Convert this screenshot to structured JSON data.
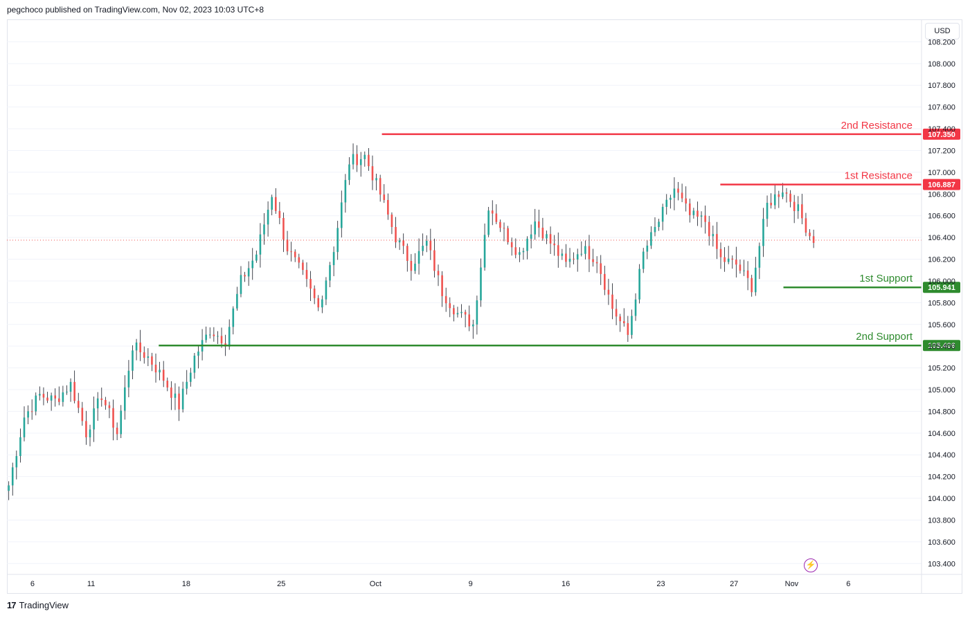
{
  "header": {
    "text": "pegchoco published on TradingView.com, Nov 02, 2023 10:03 UTC+8"
  },
  "currency": "USD",
  "footer": {
    "brand": "TradingView",
    "logo": "17"
  },
  "lightning_icon": "lightning-icon",
  "colors": {
    "up": "#26a69a",
    "down": "#ef5350",
    "resistance": "#f23645",
    "support": "#2e8b2e",
    "current_line": "#ef5350",
    "grid": "#f0f3fa",
    "axis_text": "#131722"
  },
  "chart_data": {
    "type": "candlestick",
    "title": "",
    "ylim": [
      103.3,
      108.4
    ],
    "y_ticks": [
      "103.400",
      "103.600",
      "103.800",
      "104.000",
      "104.200",
      "104.400",
      "104.600",
      "104.800",
      "105.000",
      "105.200",
      "105.400",
      "105.600",
      "105.800",
      "106.000",
      "106.200",
      "106.400",
      "106.600",
      "106.800",
      "107.000",
      "107.200",
      "107.400",
      "107.600",
      "107.800",
      "108.000",
      "108.200"
    ],
    "x_ticks": [
      "6",
      "11",
      "18",
      "25",
      "Oct",
      "9",
      "16",
      "23",
      "27",
      "Nov",
      "6"
    ],
    "current_price": 106.375,
    "levels": [
      {
        "name": "2nd Resistance",
        "price_label": "107.350",
        "value": 107.35,
        "kind": "resistance",
        "start": 0.41
      },
      {
        "name": "1st Resistance",
        "price_label": "106.887",
        "value": 106.887,
        "kind": "resistance",
        "start": 0.78
      },
      {
        "name": "1st Support",
        "price_label": "105.941",
        "value": 105.941,
        "kind": "support",
        "start": 0.849
      },
      {
        "name": "2nd Support",
        "price_label": "105.406",
        "value": 105.406,
        "kind": "support",
        "start": 0.166
      }
    ],
    "key_closes": [
      104.12,
      104.75,
      104.95,
      104.9,
      105.05,
      104.6,
      104.95,
      104.6,
      105.4,
      105.3,
      105.1,
      104.85,
      105.3,
      105.55,
      105.45,
      106.0,
      106.25,
      106.8,
      106.3,
      106.05,
      105.75,
      106.3,
      107.1,
      107.15,
      106.8,
      106.4,
      106.15,
      106.35,
      105.9,
      105.7,
      105.6,
      106.7,
      106.45,
      106.25,
      106.55,
      106.35,
      106.15,
      106.3,
      106.2,
      105.75,
      105.5,
      106.25,
      106.55,
      106.85,
      106.6,
      106.55,
      106.2,
      106.15,
      105.95,
      106.7,
      106.85,
      106.65,
      106.35
    ]
  }
}
